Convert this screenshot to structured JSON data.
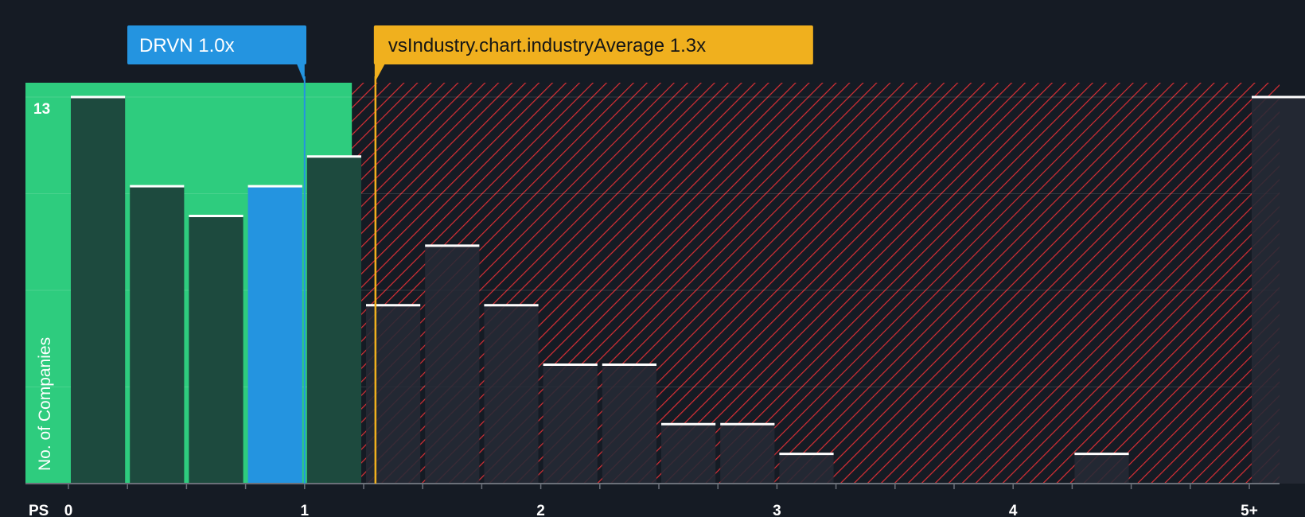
{
  "chart_data": {
    "type": "bar",
    "title": "",
    "xlabel": "PS",
    "ylabel": "No. of Companies",
    "y_max_label": "13",
    "ylim": [
      0,
      13
    ],
    "xlim": [
      -0.07,
      5.13
    ],
    "x_ticks": [
      {
        "value": 0,
        "label": "0"
      },
      {
        "value": 1,
        "label": "1"
      },
      {
        "value": 2,
        "label": "2"
      },
      {
        "value": 3,
        "label": "3"
      },
      {
        "value": 4,
        "label": "4"
      },
      {
        "value": 5,
        "label": "5+"
      }
    ],
    "bin_width": 0.25,
    "bars": [
      {
        "x_start": 0.0,
        "value": 13
      },
      {
        "x_start": 0.25,
        "value": 10
      },
      {
        "x_start": 0.5,
        "value": 9
      },
      {
        "x_start": 0.75,
        "value": 10,
        "highlight": true
      },
      {
        "x_start": 1.0,
        "value": 11
      },
      {
        "x_start": 1.25,
        "value": 6
      },
      {
        "x_start": 1.5,
        "value": 8
      },
      {
        "x_start": 1.75,
        "value": 6
      },
      {
        "x_start": 2.0,
        "value": 4
      },
      {
        "x_start": 2.25,
        "value": 4
      },
      {
        "x_start": 2.5,
        "value": 2
      },
      {
        "x_start": 2.75,
        "value": 2
      },
      {
        "x_start": 3.0,
        "value": 1
      },
      {
        "x_start": 3.25,
        "value": 0
      },
      {
        "x_start": 3.5,
        "value": 0
      },
      {
        "x_start": 3.75,
        "value": 0
      },
      {
        "x_start": 4.0,
        "value": 0
      },
      {
        "x_start": 4.25,
        "value": 1
      },
      {
        "x_start": 4.5,
        "value": 0
      },
      {
        "x_start": 4.75,
        "value": 0
      },
      {
        "x_start": 5.0,
        "value": 13
      }
    ],
    "company": {
      "label": "DRVN 1.0x",
      "value": 1.0
    },
    "industry": {
      "label": "vsIndustry.chart.industryAverage 1.3x",
      "value": 1.3
    },
    "good_region_end": 1.2,
    "colors": {
      "background": "#151b24",
      "good_zone": "#2ecc7e",
      "good_bar": "#1d4a3e",
      "highlight_bar": "#2494e0",
      "bad_bar": "#262a35",
      "hatch": "#d92f35",
      "bar_cap": "#ffffff",
      "company_callout": "#2494e0",
      "industry_callout": "#f0b01e",
      "industry_text": "#161616"
    }
  }
}
